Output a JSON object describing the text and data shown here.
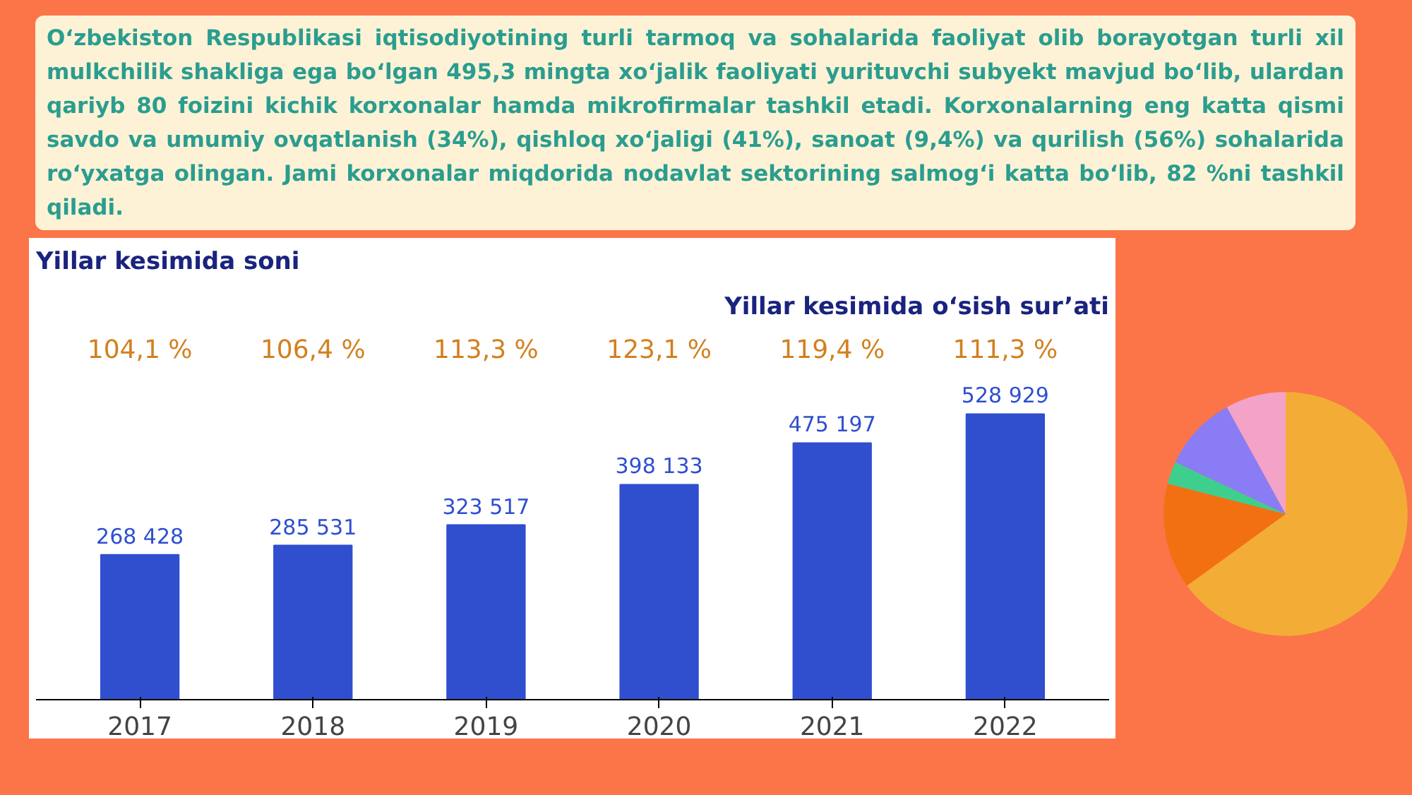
{
  "chart_data": [
    {
      "type": "bar",
      "title": "Yillar kesimida soni",
      "subtitle": "Yillar kesimida o‘sish sur’ati",
      "categories": [
        "2017",
        "2018",
        "2019",
        "2020",
        "2021",
        "2022"
      ],
      "values": [
        268428,
        285531,
        323517,
        398133,
        475197,
        528929
      ],
      "value_labels": [
        "268 428",
        "285 531",
        "323 517",
        "398 133",
        "475 197",
        "528 929"
      ],
      "color": "#2f4fcf",
      "grid": false,
      "annotations": [
        "O‘zbekiston Respublikasi iqtisodiyotining turli tarmoq va sohalarida faoliyat olib borayotgan turli xil mulkchilik shakliga ega bo‘lgan 495,3 mingta xo‘jalik faoliyati yurituvchi subyekt mavjud bo‘lib, ulardan qariyb 80 foizini kichik korxonalar hamda mikrofirmalar tashkil etadi. Korxonalarning eng katta qismi savdo va umumiy ovqatlanish (34%), qishloq xo‘jaligi (41%), sanoat (9,4%) va qurilish (56%) sohalarida ro‘yxatga olingan. Jami korxonalar miqdorida nodavlat sektorining salmog‘i katta bo‘lib, 82 %ni tashkil qiladi.",
        "104,1 %",
        "106,4 %",
        "113,3 %",
        "123,1 %",
        "119,4 %",
        "111,3 %"
      ]
    },
    {
      "type": "pie",
      "categories": [
        null,
        null,
        null,
        null,
        null
      ],
      "values": [
        65,
        14,
        3,
        10,
        8
      ],
      "colors": [
        "#f3ac36",
        "#f27011",
        "#3ecf8e",
        "#8a7cf5",
        "#f3a3c8"
      ]
    }
  ]
}
